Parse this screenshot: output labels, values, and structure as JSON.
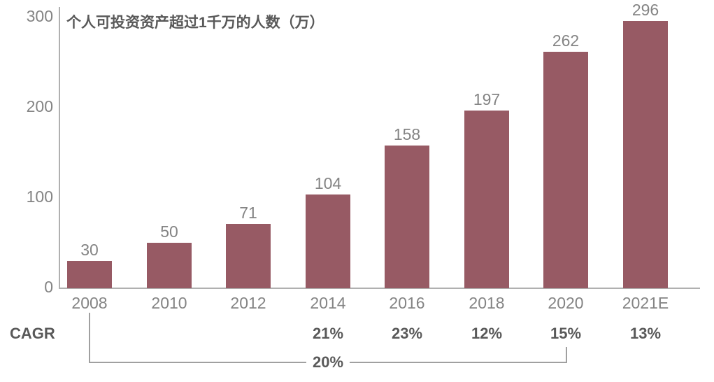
{
  "chart_data": {
    "type": "bar",
    "title": "个人可投资资产超过1千万的人数（万）",
    "categories": [
      "2008",
      "2010",
      "2012",
      "2014",
      "2016",
      "2018",
      "2020",
      "2021E"
    ],
    "values": [
      30,
      50,
      71,
      104,
      158,
      197,
      262,
      296
    ],
    "xlabel": "",
    "ylabel": "",
    "ylim": [
      0,
      300
    ],
    "yticks": [
      0,
      100,
      200,
      300
    ],
    "grid": false,
    "legend": "none",
    "cagr_row": {
      "label": "CAGR",
      "per_category": [
        "",
        "",
        "",
        "21%",
        "23%",
        "12%",
        "15%",
        "13%"
      ],
      "bracket": {
        "from": "2008",
        "to": "2020",
        "value": "20%"
      }
    }
  },
  "colors": {
    "bar": "#975a64",
    "axis": "#b0b0b0",
    "label_gray": "#848484",
    "dark_gray": "#595959",
    "bracket_line": "#a0a0a0",
    "background": "#ffffff"
  }
}
